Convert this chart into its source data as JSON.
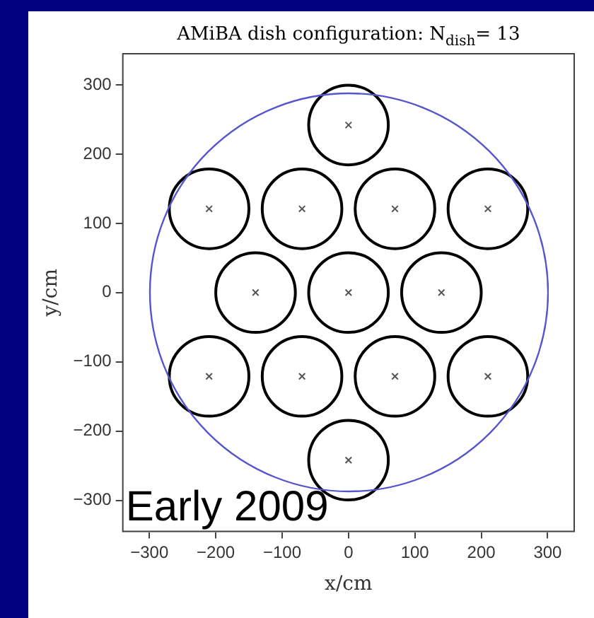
{
  "chart_data": {
    "type": "scatter",
    "title": "AMiBA dish configuration: N$_{dish}$= 13",
    "xlabel": "x/cm",
    "ylabel": "y/cm",
    "annotations": [
      "Early 2009"
    ],
    "grid": false,
    "xlim": [
      -340,
      340
    ],
    "xticks": [
      -300,
      -200,
      -100,
      0,
      100,
      200,
      300
    ],
    "ylim": [
      -345,
      345
    ],
    "yticks": [
      -300,
      -200,
      -100,
      0,
      100,
      200,
      300
    ],
    "series": [
      {
        "type": "bubble",
        "color": "#000000",
        "x": [
          0,
          -210,
          -70,
          70,
          210,
          -140,
          0,
          140,
          -210,
          -70,
          70,
          210,
          0
        ],
        "values": [
          242,
          121,
          121,
          121,
          121,
          0,
          0,
          0,
          -121,
          -121,
          -121,
          -121,
          -242
        ],
        "sizes": [
          1,
          1,
          1,
          1,
          1,
          1,
          1,
          1,
          1,
          1,
          1,
          1,
          1
        ]
      },
      {
        "marker": "cross",
        "color": "#555555",
        "x": [
          0,
          -210,
          -70,
          70,
          210,
          -140,
          0,
          140,
          -210,
          -70,
          70,
          210,
          0
        ],
        "values": [
          242,
          121,
          121,
          121,
          121,
          0,
          0,
          0,
          -121,
          -121,
          -121,
          -121,
          -242
        ]
      }
    ]
  }
}
